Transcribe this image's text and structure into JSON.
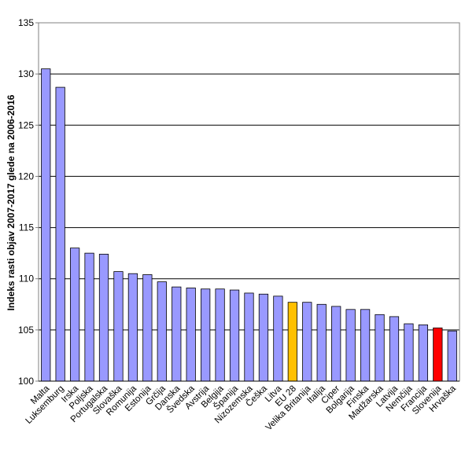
{
  "chart_data": {
    "type": "bar",
    "title": "",
    "xlabel": "",
    "ylabel": "Indeks rasti objav 2007-2017 glede na 2006-2016",
    "ylim": [
      100,
      135
    ],
    "yticks": [
      100,
      105,
      110,
      115,
      120,
      125,
      130,
      135
    ],
    "grid": true,
    "legend": "none",
    "categories": [
      "Malta",
      "Luksemburg",
      "Irska",
      "Poljska",
      "Portugalska",
      "Slovaška",
      "Romunija",
      "Estonija",
      "Grčija",
      "Danska",
      "Švedska",
      "Avstrija",
      "Belgija",
      "Španija",
      "Nizozemska",
      "Češka",
      "Litva",
      "EU 28",
      "Velika Britanija",
      "Italija",
      "Ciper",
      "Bolgarija",
      "Finska",
      "Madžarska",
      "Latvija",
      "Nemčija",
      "Francija",
      "Slovenija",
      "Hrvaška"
    ],
    "values": [
      130.5,
      128.7,
      113.0,
      112.5,
      112.4,
      110.7,
      110.5,
      110.4,
      109.7,
      109.2,
      109.1,
      109.0,
      109.0,
      108.9,
      108.6,
      108.5,
      108.3,
      107.7,
      107.7,
      107.5,
      107.3,
      107.0,
      107.0,
      106.5,
      106.3,
      105.6,
      105.5,
      105.2,
      104.9
    ],
    "colors": {
      "default": "#9999ff",
      "EU 28": "#ffc000",
      "Slovenija": "#ff0000",
      "grid": "#000000",
      "axis": "#808080"
    }
  }
}
